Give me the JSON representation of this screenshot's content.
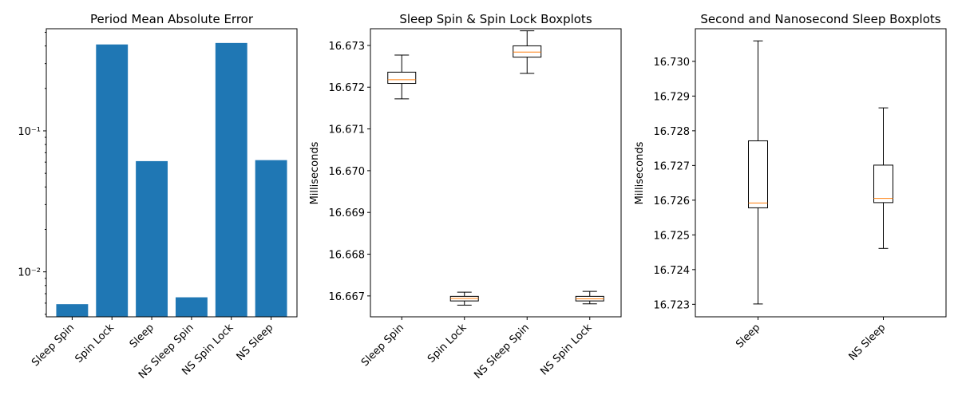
{
  "chart_data": [
    {
      "type": "bar",
      "title": "Period Mean Absolute Error",
      "xlabel": "",
      "ylabel": "",
      "yscale": "log",
      "ylim": [
        0.0048,
        0.53
      ],
      "categories": [
        "Sleep Spin",
        "Spin Lock",
        "Sleep",
        "NS Sleep Spin",
        "NS Spin Lock",
        "NS Sleep"
      ],
      "values": [
        0.0059,
        0.41,
        0.061,
        0.0066,
        0.42,
        0.062
      ],
      "ytick_labels": [
        "10⁻²",
        "10⁻¹"
      ],
      "color": "#1f77b4",
      "grid": false
    },
    {
      "type": "boxplot",
      "title": "Sleep Spin & Spin Lock Boxplots",
      "xlabel": "",
      "ylabel": "Milliseconds",
      "ylim": [
        16.6665,
        16.6734
      ],
      "yticks": [
        "16.667",
        "16.668",
        "16.669",
        "16.670",
        "16.671",
        "16.672",
        "16.673"
      ],
      "categories": [
        "Sleep Spin",
        "Spin Lock",
        "NS Sleep Spin",
        "NS Spin Lock"
      ],
      "boxes": [
        {
          "whislo": 16.67172,
          "q1": 16.67209,
          "med": 16.67218,
          "q3": 16.67236,
          "whishi": 16.67277
        },
        {
          "whislo": 16.66678,
          "q1": 16.66688,
          "med": 16.66694,
          "q3": 16.66699,
          "whishi": 16.66709
        },
        {
          "whislo": 16.67233,
          "q1": 16.67272,
          "med": 16.67284,
          "q3": 16.67299,
          "whishi": 16.67335
        },
        {
          "whislo": 16.66681,
          "q1": 16.66688,
          "med": 16.66693,
          "q3": 16.66699,
          "whishi": 16.66711
        }
      ],
      "grid": false
    },
    {
      "type": "boxplot",
      "title": "Second and Nanosecond Sleep Boxplots",
      "xlabel": "",
      "ylabel": "Milliseconds",
      "ylim": [
        16.72264,
        16.73094
      ],
      "yticks": [
        "16.723",
        "16.724",
        "16.725",
        "16.726",
        "16.727",
        "16.728",
        "16.729",
        "16.730"
      ],
      "categories": [
        "Sleep",
        "NS Sleep"
      ],
      "boxes": [
        {
          "whislo": 16.72301,
          "q1": 16.72578,
          "med": 16.72592,
          "q3": 16.72771,
          "whishi": 16.73059
        },
        {
          "whislo": 16.72461,
          "q1": 16.72593,
          "med": 16.72605,
          "q3": 16.72701,
          "whishi": 16.72866
        }
      ],
      "grid": false
    }
  ],
  "colors": {
    "bar": "#1f77b4",
    "median": "#ff7f0e",
    "box": "#000000",
    "axes": "#000000"
  }
}
